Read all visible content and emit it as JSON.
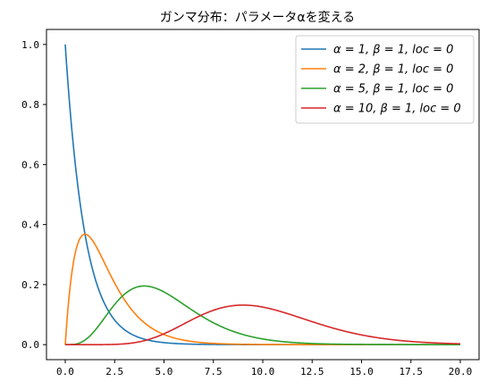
{
  "chart_data": {
    "type": "line",
    "title": "ガンマ分布：パラメータαを変える",
    "xlabel": "",
    "ylabel": "",
    "xlim": [
      -0.95,
      20.95
    ],
    "ylim": [
      -0.05,
      1.05
    ],
    "xticks": [
      0.0,
      2.5,
      5.0,
      7.5,
      10.0,
      12.5,
      15.0,
      17.5,
      20.0
    ],
    "xtick_labels": [
      "0.0",
      "2.5",
      "5.0",
      "7.5",
      "10.0",
      "12.5",
      "15.0",
      "17.5",
      "20.0"
    ],
    "yticks": [
      0.0,
      0.2,
      0.4,
      0.6,
      0.8,
      1.0
    ],
    "ytick_labels": [
      "0.0",
      "0.2",
      "0.4",
      "0.6",
      "0.8",
      "1.0"
    ],
    "grid": false,
    "legend_position": "top-right",
    "x_domain": [
      0,
      20
    ],
    "series": [
      {
        "name": "α = 1,  β = 1,  loc = 0",
        "alpha": 1,
        "beta": 1,
        "loc": 0,
        "color": "#1f77b4"
      },
      {
        "name": "α = 2,  β = 1,  loc = 0",
        "alpha": 2,
        "beta": 1,
        "loc": 0,
        "color": "#ff7f0e"
      },
      {
        "name": "α = 5,  β = 1,  loc = 0",
        "alpha": 5,
        "beta": 1,
        "loc": 0,
        "color": "#2ca02c"
      },
      {
        "name": "α = 10,  β = 1,  loc = 0",
        "alpha": 10,
        "beta": 1,
        "loc": 0,
        "color": "#d62728"
      }
    ],
    "peaks": [
      {
        "series": "α = 1,  β = 1,  loc = 0",
        "x": 0,
        "y": 1.0
      },
      {
        "series": "α = 2,  β = 1,  loc = 0",
        "x": 1,
        "y": 0.368
      },
      {
        "series": "α = 5,  β = 1,  loc = 0",
        "x": 4,
        "y": 0.195
      },
      {
        "series": "α = 10,  β = 1,  loc = 0",
        "x": 9,
        "y": 0.132
      }
    ]
  }
}
